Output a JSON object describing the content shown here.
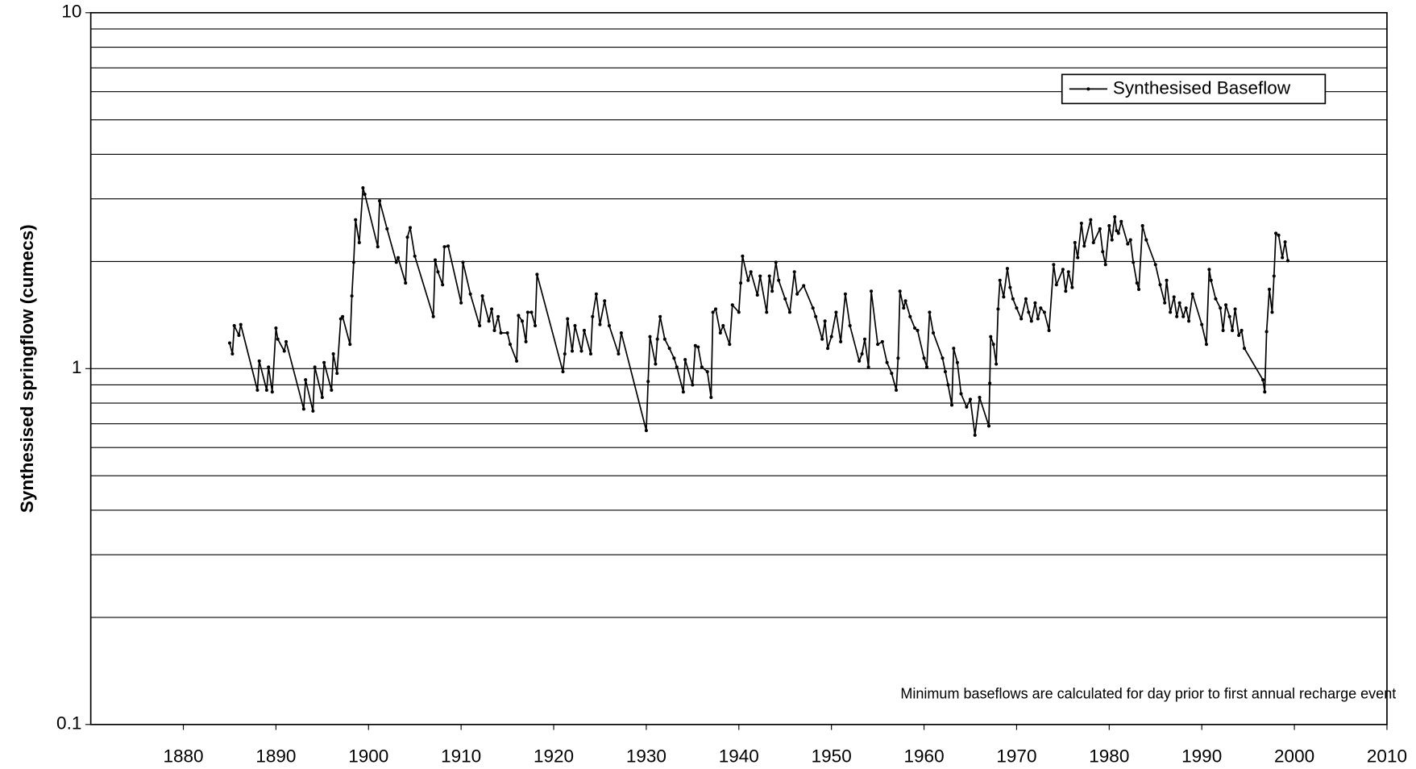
{
  "chart_data": {
    "type": "line",
    "y_label": "Synthesised springflow (cumecs)",
    "annotation": "Minimum baseflows are calculated for day prior to first annual recharge event",
    "log_y": true,
    "grid": true,
    "legend": "top right",
    "xlim": [
      1870,
      2010
    ],
    "xticks": [
      1880,
      1890,
      1900,
      1910,
      1920,
      1930,
      1940,
      1950,
      1960,
      1970,
      1980,
      1990,
      2000,
      2010
    ],
    "ylim": [
      0.1,
      10
    ],
    "yticks": [
      0.1,
      1,
      10
    ],
    "yminor": [
      0.2,
      0.3,
      0.4,
      0.5,
      0.6,
      0.7,
      0.8,
      0.9,
      2,
      3,
      4,
      5,
      6,
      7,
      8,
      9
    ],
    "x": [
      1885,
      1885.3,
      1885.5,
      1886,
      1886.2,
      1888,
      1888.2,
      1889,
      1889.2,
      1889.6,
      1890,
      1890.2,
      1890.9,
      1891.1,
      1893,
      1893.2,
      1894,
      1894.2,
      1895,
      1895.2,
      1896,
      1896.2,
      1896.6,
      1897,
      1897.2,
      1898,
      1898.2,
      1898.4,
      1898.6,
      1899,
      1899.4,
      1899.6,
      1901,
      1901.2,
      1902,
      1903,
      1903.2,
      1904,
      1904.2,
      1904.5,
      1905,
      1907,
      1907.2,
      1907.5,
      1908,
      1908.2,
      1908.6,
      1910,
      1910.2,
      1911,
      1912,
      1912.3,
      1913,
      1913.3,
      1913.6,
      1914,
      1914.3,
      1915,
      1915.3,
      1916,
      1916.2,
      1916.6,
      1917,
      1917.2,
      1917.6,
      1918,
      1918.2,
      1921,
      1921.2,
      1921.5,
      1922,
      1922.3,
      1923,
      1923.3,
      1924,
      1924.2,
      1924.6,
      1925,
      1925.5,
      1926,
      1927,
      1927.3,
      1930,
      1930.2,
      1930.4,
      1931,
      1931.2,
      1931.5,
      1932,
      1932.5,
      1933,
      1933.3,
      1934,
      1934.2,
      1935,
      1935.3,
      1935.6,
      1936,
      1936.6,
      1937,
      1937.2,
      1937.5,
      1938,
      1938.3,
      1939,
      1939.3,
      1940,
      1940.2,
      1940.4,
      1941,
      1941.3,
      1942,
      1942.3,
      1943,
      1943.3,
      1943.6,
      1944,
      1944.3,
      1945,
      1945.5,
      1946,
      1946.3,
      1947,
      1948,
      1948.3,
      1949,
      1949.3,
      1949.6,
      1950,
      1950.5,
      1951,
      1951.5,
      1952,
      1953,
      1953.3,
      1953.6,
      1954,
      1954.3,
      1955,
      1955.5,
      1956,
      1956.5,
      1957,
      1957.2,
      1957.4,
      1957.8,
      1958,
      1958.5,
      1959,
      1959.3,
      1960,
      1960.3,
      1960.6,
      1961,
      1962,
      1962.3,
      1962.6,
      1963,
      1963.2,
      1963.6,
      1964,
      1964.6,
      1965,
      1965.5,
      1966,
      1967,
      1967.1,
      1967.2,
      1967.5,
      1967.8,
      1968,
      1968.2,
      1968.6,
      1969,
      1969.3,
      1969.6,
      1970,
      1970.5,
      1971,
      1971.3,
      1971.6,
      1972,
      1972.3,
      1972.6,
      1973,
      1973.5,
      1974,
      1974.3,
      1975,
      1975.3,
      1975.6,
      1976,
      1976.3,
      1976.6,
      1977,
      1977.3,
      1978,
      1978.3,
      1979,
      1979.3,
      1979.6,
      1980,
      1980.3,
      1980.6,
      1980.8,
      1981,
      1981.3,
      1982,
      1982.3,
      1982.6,
      1983,
      1983.2,
      1983.6,
      1984,
      1985,
      1985.5,
      1986,
      1986.2,
      1986.6,
      1987,
      1987.3,
      1987.6,
      1988,
      1988.3,
      1988.6,
      1989,
      1990,
      1990.5,
      1990.8,
      1991,
      1991.5,
      1992,
      1992.3,
      1992.6,
      1993,
      1993.3,
      1993.6,
      1994,
      1994.3,
      1994.6,
      1996.6,
      1996.8,
      1997,
      1997.3,
      1997.6,
      1997.8,
      1998,
      1998.3,
      1998.7,
      1999,
      1999.3
    ],
    "series": [
      {
        "name": "Synthesised Baseflow",
        "color": "#000000",
        "values": [
          1.18,
          1.1,
          1.32,
          1.24,
          1.33,
          0.87,
          1.05,
          0.87,
          1.01,
          0.86,
          1.3,
          1.21,
          1.12,
          1.19,
          0.77,
          0.93,
          0.76,
          1.01,
          0.83,
          1.04,
          0.87,
          1.1,
          0.97,
          1.38,
          1.4,
          1.17,
          1.6,
          1.99,
          2.62,
          2.26,
          3.22,
          3.09,
          2.2,
          2.96,
          2.47,
          1.99,
          2.05,
          1.74,
          2.34,
          2.49,
          2.07,
          1.4,
          2.02,
          1.87,
          1.72,
          2.2,
          2.21,
          1.53,
          1.99,
          1.62,
          1.32,
          1.6,
          1.36,
          1.47,
          1.28,
          1.4,
          1.26,
          1.26,
          1.17,
          1.05,
          1.41,
          1.36,
          1.19,
          1.44,
          1.44,
          1.32,
          1.84,
          0.98,
          1.1,
          1.38,
          1.12,
          1.32,
          1.12,
          1.28,
          1.1,
          1.4,
          1.62,
          1.33,
          1.55,
          1.32,
          1.1,
          1.26,
          0.67,
          0.92,
          1.23,
          1.03,
          1.21,
          1.4,
          1.21,
          1.14,
          1.07,
          1.01,
          0.86,
          1.06,
          0.9,
          1.16,
          1.15,
          1.01,
          0.98,
          0.83,
          1.44,
          1.47,
          1.26,
          1.32,
          1.17,
          1.51,
          1.44,
          1.74,
          2.07,
          1.77,
          1.87,
          1.61,
          1.82,
          1.44,
          1.82,
          1.65,
          1.99,
          1.77,
          1.57,
          1.44,
          1.87,
          1.62,
          1.71,
          1.48,
          1.4,
          1.21,
          1.36,
          1.14,
          1.23,
          1.44,
          1.19,
          1.62,
          1.32,
          1.05,
          1.1,
          1.21,
          1.01,
          1.65,
          1.17,
          1.19,
          1.04,
          0.97,
          0.87,
          1.07,
          1.65,
          1.48,
          1.55,
          1.4,
          1.3,
          1.28,
          1.07,
          1.01,
          1.44,
          1.26,
          1.07,
          0.98,
          0.9,
          0.79,
          1.14,
          1.04,
          0.85,
          0.78,
          0.82,
          0.65,
          0.83,
          0.69,
          0.91,
          1.23,
          1.17,
          1.03,
          1.47,
          1.77,
          1.59,
          1.91,
          1.69,
          1.57,
          1.48,
          1.38,
          1.57,
          1.44,
          1.36,
          1.53,
          1.38,
          1.48,
          1.44,
          1.28,
          1.96,
          1.72,
          1.9,
          1.65,
          1.87,
          1.69,
          2.26,
          2.05,
          2.56,
          2.21,
          2.62,
          2.26,
          2.47,
          2.13,
          1.96,
          2.52,
          2.3,
          2.67,
          2.44,
          2.4,
          2.59,
          2.24,
          2.3,
          1.99,
          1.74,
          1.67,
          2.52,
          2.3,
          1.96,
          1.72,
          1.53,
          1.77,
          1.44,
          1.59,
          1.4,
          1.53,
          1.4,
          1.48,
          1.36,
          1.62,
          1.33,
          1.17,
          1.9,
          1.77,
          1.57,
          1.48,
          1.28,
          1.51,
          1.4,
          1.28,
          1.47,
          1.24,
          1.28,
          1.14,
          0.93,
          0.86,
          1.27,
          1.67,
          1.44,
          1.82,
          2.4,
          2.37,
          2.05,
          2.27,
          2.01
        ]
      }
    ]
  }
}
